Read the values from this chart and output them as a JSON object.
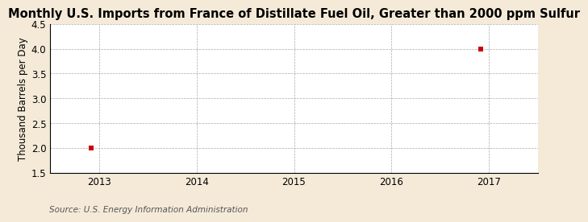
{
  "title": "Monthly U.S. Imports from France of Distillate Fuel Oil, Greater than 2000 ppm Sulfur",
  "ylabel": "Thousand Barrels per Day",
  "source": "Source: U.S. Energy Information Administration",
  "figure_background_color": "#f5ead8",
  "plot_background_color": "#ffffff",
  "data_points_x": [
    2012.917,
    2016.917
  ],
  "data_points_y": [
    2.0,
    4.0
  ],
  "point_color": "#cc0000",
  "point_marker": "s",
  "point_size": 4,
  "xlim": [
    2012.5,
    2017.5
  ],
  "ylim": [
    1.5,
    4.5
  ],
  "xticks": [
    2013,
    2014,
    2015,
    2016,
    2017
  ],
  "yticks": [
    1.5,
    2.0,
    2.5,
    3.0,
    3.5,
    4.0,
    4.5
  ],
  "title_fontsize": 10.5,
  "axis_fontsize": 8.5,
  "tick_fontsize": 8.5,
  "source_fontsize": 7.5,
  "grid_color": "#aaaaaa",
  "grid_linestyle": "--",
  "grid_linewidth": 0.5,
  "spine_color": "#000000",
  "spine_linewidth": 0.8
}
